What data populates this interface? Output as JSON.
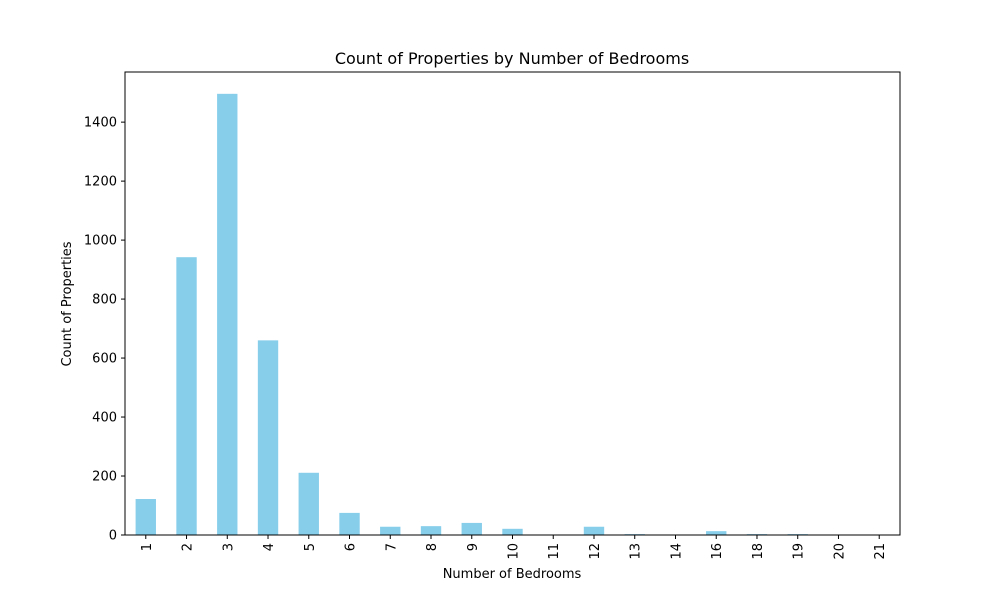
{
  "chart_data": {
    "type": "bar",
    "title": "Count of Properties by Number of Bedrooms",
    "xlabel": "Number of Bedrooms",
    "ylabel": "Count of Properties",
    "categories": [
      "1",
      "2",
      "3",
      "4",
      "5",
      "6",
      "7",
      "8",
      "9",
      "10",
      "11",
      "12",
      "13",
      "14",
      "16",
      "18",
      "19",
      "20",
      "21"
    ],
    "values": [
      122,
      942,
      1496,
      660,
      211,
      75,
      28,
      30,
      41,
      21,
      1,
      28,
      3,
      1,
      13,
      3,
      3,
      1,
      1
    ],
    "ylim": [
      0,
      1570
    ],
    "yticks": [
      0,
      200,
      400,
      600,
      800,
      1000,
      1200,
      1400
    ],
    "bar_color": "#87CEEB",
    "grid": false,
    "legend": false
  }
}
